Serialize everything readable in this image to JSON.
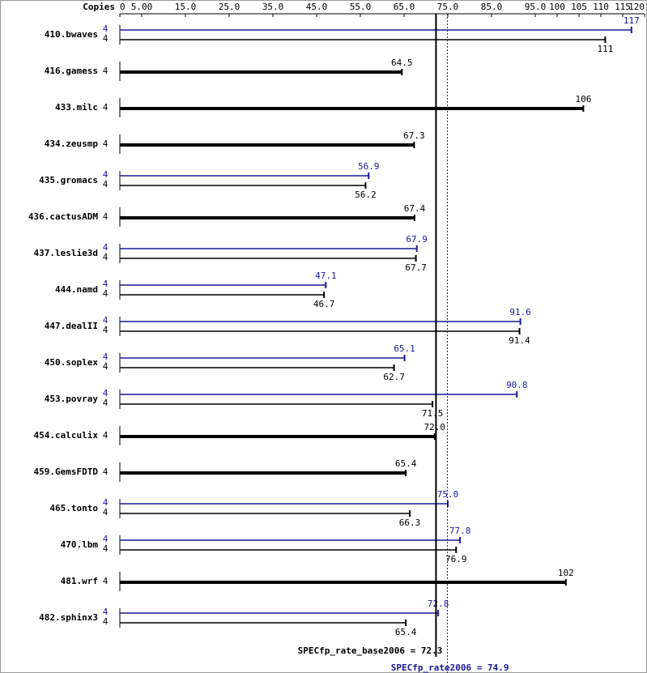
{
  "chart_data": {
    "type": "bar",
    "orientation": "horizontal",
    "copies_header": "Copies",
    "categories": [
      "410.bwaves",
      "416.gamess",
      "433.milc",
      "434.zeusmp",
      "435.gromacs",
      "436.cactusADM",
      "437.leslie3d",
      "444.namd",
      "447.dealII",
      "450.soplex",
      "453.povray",
      "454.calculix",
      "459.GemsFDTD",
      "465.tonto",
      "470.lbm",
      "481.wrf",
      "482.sphinx3"
    ],
    "series": [
      {
        "color": "#000000",
        "copies": [
          4,
          4,
          4,
          4,
          4,
          4,
          4,
          4,
          4,
          4,
          4,
          4,
          4,
          4,
          4,
          4,
          4
        ],
        "values": [
          111,
          64.5,
          106,
          67.3,
          56.2,
          67.4,
          67.7,
          46.7,
          91.4,
          62.7,
          71.5,
          72.0,
          65.4,
          66.3,
          76.9,
          102,
          65.4
        ],
        "value_labels": [
          "111",
          "64.5",
          "106",
          "67.3",
          "56.2",
          "67.4",
          "67.7",
          "46.7",
          "91.4",
          "62.7",
          "71.5",
          "72.0",
          "65.4",
          "66.3",
          "76.9",
          "102",
          "65.4"
        ]
      },
      {
        "color": "#191999",
        "copies": [
          4,
          null,
          null,
          null,
          4,
          null,
          4,
          4,
          4,
          4,
          4,
          null,
          null,
          4,
          4,
          null,
          4
        ],
        "values": [
          117,
          null,
          null,
          null,
          56.9,
          null,
          67.9,
          47.1,
          91.6,
          65.1,
          90.8,
          null,
          null,
          75.0,
          77.8,
          null,
          72.8
        ],
        "value_labels": [
          "117",
          null,
          null,
          null,
          "56.9",
          null,
          "67.9",
          "47.1",
          "91.6",
          "65.1",
          "90.8",
          null,
          null,
          "75.0",
          "77.8",
          null,
          "72.8"
        ]
      }
    ],
    "xlim": [
      0,
      120
    ],
    "xticks": [
      0,
      {
        "value": 5,
        "label": "5.00"
      },
      {
        "value": 15,
        "label": "15.0"
      },
      {
        "value": 25,
        "label": "25.0"
      },
      {
        "value": 35,
        "label": "35.0"
      },
      {
        "value": 45,
        "label": "45.0"
      },
      {
        "value": 55,
        "label": "55.0"
      },
      {
        "value": 65,
        "label": "65.0"
      },
      {
        "value": 75,
        "label": "75.0"
      },
      {
        "value": 85,
        "label": "85.0"
      },
      {
        "value": 95,
        "label": "95.0"
      },
      100,
      105,
      110,
      115,
      120
    ],
    "reference_lines": [
      {
        "value": 72.3,
        "label": "SPECfp_rate_base2006 = 72.3",
        "color": "#000000",
        "style": "solid"
      },
      {
        "value": 74.9,
        "label": "SPECfp_rate2006 = 74.9",
        "color": "#191999",
        "style": "dotted"
      }
    ]
  }
}
